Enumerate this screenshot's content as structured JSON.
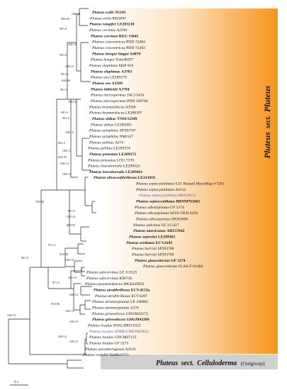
{
  "sections": {
    "pluteus_genus": "Pluteus",
    "pluteus_sect": "sect.",
    "pluteus_name": "Pluteus",
    "cell_genus": "Pluteus",
    "cell_sect": "sect.",
    "cell_name": "Celluloderma",
    "cell_note": "(Outgroup)"
  },
  "scale_label": "0.1",
  "colors": {
    "pluteus_band_start": "#f7941d",
    "pluteus_band_end": "#ffffff",
    "outgroup_band": "#cccccc",
    "highlight_taxon": "#6a4aa8"
  },
  "taxa": [
    {
      "g": "Pluteus",
      "s": "exilis",
      "v": "N5105",
      "bold": true
    },
    {
      "g": "Pluteus",
      "s": "exilis",
      "v": "MSSF87"
    },
    {
      "g": "Pluteus",
      "s": "rangifer",
      "v": "LE203210",
      "bold": true
    },
    {
      "g": "Pluteus",
      "s": "cervinus",
      "v": "AJ590"
    },
    {
      "g": "Pluteus",
      "s": "cervinus",
      "v": "REG 13641",
      "bold": true
    },
    {
      "g": "Pluteus",
      "s": "concentricus",
      "v": "PDD 72484"
    },
    {
      "g": "Pluteus",
      "s": "concentricus",
      "v": "PDD 72493"
    },
    {
      "g": "Pluteus",
      "s": "hongoi",
      "v": "Singer A4070",
      "bold": true
    },
    {
      "g": "Pluteus",
      "s": "hongoi",
      "v": "Tenn48297"
    },
    {
      "g": "Pluteus",
      "s": "elaphinus",
      "v": "MSP 018"
    },
    {
      "g": "Pluteus",
      "s": "elaphinus",
      "v": "AJ783",
      "bold": true
    },
    {
      "g": "Pluteus",
      "s": "eos",
      "v": "LE289379"
    },
    {
      "g": "Pluteus",
      "s": "eos",
      "v": "AJ589",
      "bold": true
    },
    {
      "g": "Pluteus",
      "s": "hibbettii",
      "v": "AJ794",
      "bold": true
    },
    {
      "g": "Pluteus",
      "s": "microspermus",
      "v": "JAC15434"
    },
    {
      "g": "Pluteus",
      "s": "microspermus",
      "v": "PDD 108760"
    },
    {
      "g": "Pluteus",
      "s": "brunneidiscus",
      "v": "AJ586"
    },
    {
      "g": "Pluteus",
      "s": "brunneidiscus",
      "v": "LE289397"
    },
    {
      "g": "Pluteus",
      "s": "shikae",
      "v": "TNSF12349",
      "bold": true
    },
    {
      "g": "Pluteus",
      "s": "shikae",
      "v": "LE289383"
    },
    {
      "g": "Pluteus",
      "s": "xylophilus",
      "v": "SP393707"
    },
    {
      "g": "Pluteus",
      "s": "xylophilus",
      "v": "NMJ147"
    },
    {
      "g": "Pluteus",
      "s": "pellitus",
      "v": "AJ74"
    },
    {
      "g": "Pluteus",
      "s": "pellitus",
      "v": "LE289374"
    },
    {
      "g": "Pluteus",
      "s": "petasatus",
      "v": "LE289372",
      "bold": true
    },
    {
      "g": "Pluteus",
      "s": "petasatus",
      "v": "LOU:7570"
    },
    {
      "g": "Pluteus",
      "s": "leucoborealis",
      "v": "LE289424"
    },
    {
      "g": "Pluteus",
      "s": "leucoborealis",
      "v": "LE289421",
      "bold": true
    },
    {
      "g": "Pluteus",
      "s": "olivaceofibrillosus",
      "v": "LE313059",
      "bold": true
    },
    {
      "g": "Pluteus",
      "s": "septocystidiatus",
      "v": "S.D. Russell MycoMap # 7201"
    },
    {
      "g": "Pluteus",
      "s": "septocystidiatus",
      "v": "AJ154"
    },
    {
      "g": "Pluteus",
      "s": "septocystidiatus",
      "v": "BKF10212",
      "purple": true
    },
    {
      "g": "Pluteus",
      "s": "septocystidiatus",
      "v": "BRNM761662",
      "bold": true
    },
    {
      "g": "Pluteus",
      "s": "albostipitatus",
      "v": "GF 5374"
    },
    {
      "g": "Pluteus",
      "s": "albostipitatus",
      "v": "SFSU:DED 8250"
    },
    {
      "g": "Pluteus",
      "s": "albostipitatus",
      "v": "SP393696"
    },
    {
      "g": "Pluteus",
      "s": "salicinus",
      "v": "LE 215427"
    },
    {
      "g": "Pluteus",
      "s": "americanus",
      "v": "AH557842",
      "bold": true
    },
    {
      "g": "Pluteus",
      "s": "sepicolor",
      "v": "LE289365",
      "bold": true
    },
    {
      "g": "Pluteus",
      "s": "oreibatus",
      "v": "ECV.4183",
      "bold": true
    },
    {
      "g": "Pluteus",
      "s": "harrisii",
      "v": "SP393708"
    },
    {
      "g": "Pluteus",
      "s": "harrisii",
      "v": "SP393709"
    },
    {
      "g": "Pluteus",
      "s": "glaucotinctus",
      "v": "GF 5274",
      "bold": true
    },
    {
      "g": "Pluteus",
      "s": "glaucotinctus",
      "v": "FLAS-F-61484"
    },
    {
      "g": "Pluteus",
      "s": "subcervinus",
      "v": "LE 313525"
    },
    {
      "g": "Pluteus",
      "s": "subcervinus",
      "v": "K90736"
    },
    {
      "g": "Pluteus",
      "s": "purpureofuscus",
      "v": "HKAS49956"
    },
    {
      "g": "Pluteus",
      "s": "atrofibrillosus",
      "v": "ECV.4153a",
      "bold": true
    },
    {
      "g": "Pluteus",
      "s": "atrofibrillosus",
      "v": "ECV4207"
    },
    {
      "g": "Pluteus",
      "s": "atromarginatus",
      "v": "LE 246081"
    },
    {
      "g": "Pluteus",
      "s": "atromarginatus",
      "v": "AJ76"
    },
    {
      "g": "Pluteus",
      "s": "griseodiscus",
      "v": "GDGM42273"
    },
    {
      "g": "Pluteus",
      "s": "griseodiscus",
      "v": "GDGM42280",
      "bold": true
    },
    {
      "g": "Pluteus",
      "s": "losulus",
      "v": "SFSU:DED 8313"
    },
    {
      "g": "Pluteus",
      "s": "losulus",
      "v": "SDBR-CMUNK0842",
      "purple": true
    },
    {
      "g": "Pluteus",
      "s": "losulus",
      "v": "GDGM47122"
    },
    {
      "g": "Pluteus",
      "s": "losulus",
      "v": "GF 5273"
    },
    {
      "g": "Pluteus",
      "s": "aurantiorugosus",
      "v": "AJ219"
    },
    {
      "g": "Pluteus",
      "s": "romellii",
      "v": "Shaffer3715"
    }
  ],
  "supports": [
    {
      "t": "100/1.0",
      "n": "exilis"
    },
    {
      "t": "88/0.99",
      "n": "exilis-rangifer"
    },
    {
      "t": "99/1.0",
      "n": "cervinus-group"
    },
    {
      "t": "100/1.0",
      "n": "concentricus"
    },
    {
      "t": "99/1.0",
      "n": "hongoi"
    },
    {
      "t": "100/1.0",
      "n": "elaphinus"
    },
    {
      "t": "99/1.0",
      "n": "elaphinus-eos"
    },
    {
      "t": "84/0.96",
      "n": "eos"
    },
    {
      "t": "99/1.0",
      "n": "eos-hibbettii"
    },
    {
      "t": "100/1.0",
      "n": "microspermus"
    },
    {
      "t": "99/1.0",
      "n": "brunneidiscus"
    },
    {
      "t": "99/1.0",
      "n": "shikae"
    },
    {
      "t": "100/1.0",
      "n": "xylophilus"
    },
    {
      "t": "96/1.0",
      "n": "xylophilus-pellitus"
    },
    {
      "t": "100/1.0",
      "n": "pellitus"
    },
    {
      "t": "82/0.99",
      "n": "petasatus"
    },
    {
      "t": "100/1.0",
      "n": "petasatus-leuco"
    },
    {
      "t": "100/1.0",
      "n": "leucoborealis"
    },
    {
      "t": "79/0.96",
      "n": "backbone-1"
    },
    {
      "t": "99/1.0",
      "n": "septocystidiatus"
    },
    {
      "t": "100/1.0",
      "n": "albostipitatus-a"
    },
    {
      "t": "80/0.97",
      "n": "albostipitatus-b"
    },
    {
      "t": "97/1.0",
      "n": "salicinus-group"
    },
    {
      "t": "91/0.99",
      "n": "sepicolor"
    },
    {
      "t": "100/1.0",
      "n": "harrisii"
    },
    {
      "t": "96/1.0",
      "n": "backbone-2"
    },
    {
      "t": "100/1.0",
      "n": "subcervinus"
    },
    {
      "t": "97/1.0",
      "n": "subcervinus-group"
    },
    {
      "t": "100/1.0",
      "n": "atrofibrillosus"
    },
    {
      "t": "95/0.96",
      "n": "atro-group"
    },
    {
      "t": "100/1.0",
      "n": "atromarginatus"
    },
    {
      "t": "100/1.0",
      "n": "griseodiscus"
    },
    {
      "t": "100/1.0",
      "n": "root-ingroup"
    },
    {
      "t": "100/1.0",
      "n": "losulus-group"
    },
    {
      "t": "100/1.0",
      "n": "losulus"
    }
  ]
}
